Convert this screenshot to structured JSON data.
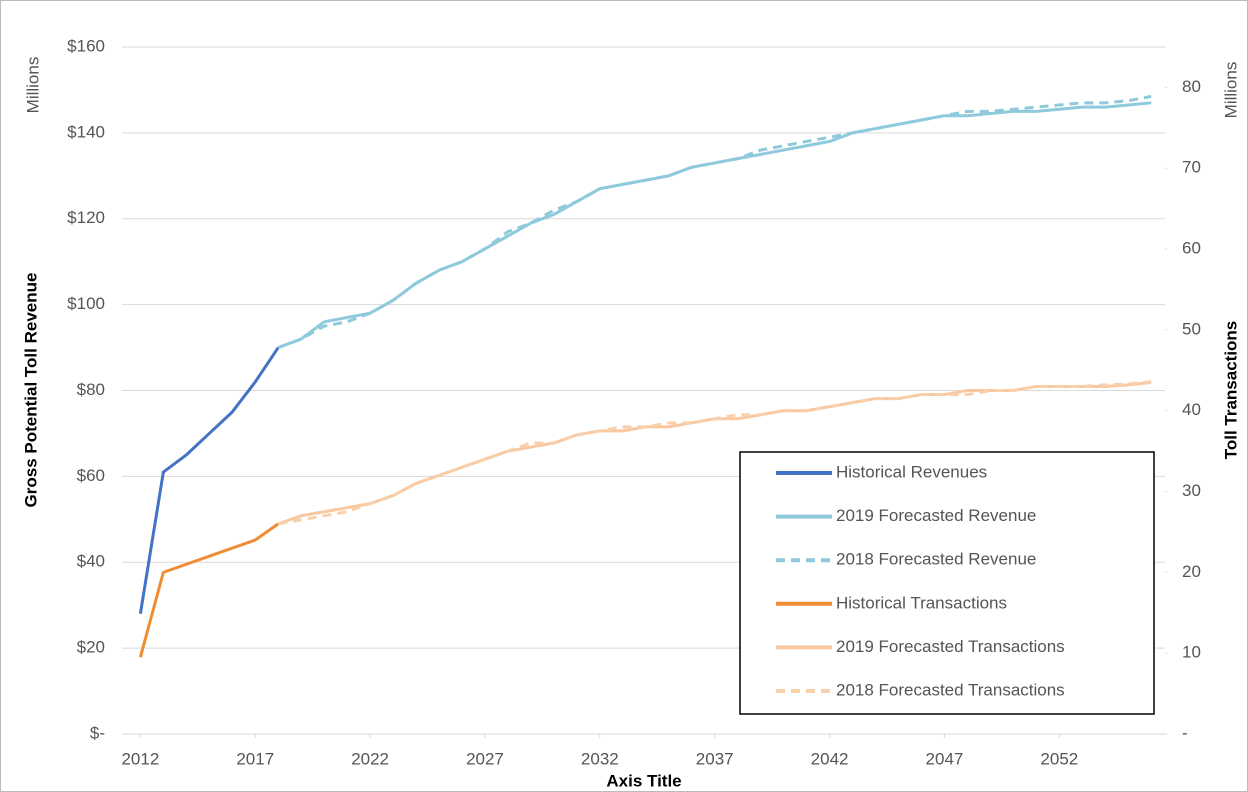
{
  "chart_data": {
    "type": "line",
    "x_label": "Axis Title",
    "y_label": "Gross Potential Toll Revenue",
    "y2_label": "Toll Transactions",
    "y_unit": "Millions",
    "y2_unit": "Millions",
    "xlim": [
      2011.2,
      2056.6
    ],
    "xticks": [
      2012,
      2017,
      2022,
      2027,
      2032,
      2037,
      2042,
      2047,
      2052
    ],
    "ylim": [
      0,
      160
    ],
    "yticks": [
      {
        "value": 0,
        "label": "$-"
      },
      {
        "value": 20,
        "label": "$20"
      },
      {
        "value": 40,
        "label": "$40"
      },
      {
        "value": 60,
        "label": "$60"
      },
      {
        "value": 80,
        "label": "$80"
      },
      {
        "value": 100,
        "label": "$100"
      },
      {
        "value": 120,
        "label": "$120"
      },
      {
        "value": 140,
        "label": "$140"
      },
      {
        "value": 160,
        "label": "$160"
      }
    ],
    "y2lim": [
      0,
      85
    ],
    "y2ticks": [
      {
        "value": 0,
        "label": "-"
      },
      10,
      20,
      30,
      40,
      50,
      60,
      70,
      80
    ],
    "grid": true,
    "legend": "lower right",
    "series": [
      {
        "name": "Historical Revenues",
        "color": "#4472c4",
        "dashed": false,
        "x": [
          2012,
          2013,
          2014,
          2015,
          2016,
          2017,
          2018
        ],
        "values": [
          28,
          61,
          65,
          70,
          75,
          82,
          90
        ]
      },
      {
        "name": "2019 Forecasted Revenue",
        "color": "#8ec9dc",
        "dashed": false,
        "x": [
          2018,
          2019,
          2020,
          2021,
          2022,
          2023,
          2024,
          2025,
          2026,
          2027,
          2028,
          2029,
          2030,
          2031,
          2032,
          2033,
          2034,
          2035,
          2036,
          2037,
          2038,
          2039,
          2040,
          2041,
          2042,
          2043,
          2044,
          2045,
          2046,
          2047,
          2048,
          2049,
          2050,
          2051,
          2052,
          2053,
          2054,
          2055,
          2056
        ],
        "values": [
          90,
          92,
          96,
          97,
          98,
          101,
          105,
          108,
          110,
          113,
          116,
          119,
          121,
          124,
          127,
          128,
          129,
          130,
          132,
          133,
          134,
          135,
          136,
          137,
          138,
          140,
          141,
          142,
          143,
          144,
          144,
          144.5,
          145,
          145,
          145.5,
          146,
          146,
          146.5,
          147
        ]
      },
      {
        "name": "2018 Forecasted Revenue",
        "color": "#8ec9dc",
        "dashed": true,
        "x": [
          2018,
          2019,
          2020,
          2021,
          2022,
          2023,
          2024,
          2025,
          2026,
          2027,
          2028,
          2029,
          2030,
          2031,
          2032,
          2033,
          2034,
          2035,
          2036,
          2037,
          2038,
          2039,
          2040,
          2041,
          2042,
          2043,
          2044,
          2045,
          2046,
          2047,
          2048,
          2049,
          2050,
          2051,
          2052,
          2053,
          2054,
          2055,
          2056
        ],
        "values": [
          90,
          92,
          95,
          96,
          98,
          101,
          105,
          108,
          110,
          113,
          117,
          119,
          122,
          124,
          127,
          128,
          129,
          130,
          132,
          133,
          134,
          136,
          137,
          138,
          139,
          140,
          141,
          142,
          143,
          144,
          145,
          145,
          145.5,
          146,
          146.5,
          147,
          147,
          147.5,
          148.5
        ]
      },
      {
        "name": "Historical Transactions",
        "color": "#f08c34",
        "dashed": false,
        "axis": "y2",
        "x": [
          2012,
          2013,
          2014,
          2015,
          2016,
          2017,
          2018
        ],
        "values": [
          9.5,
          20,
          21,
          22,
          23,
          24,
          26
        ]
      },
      {
        "name": "2019 Forecasted Transactions",
        "color": "#f9c8a0",
        "dashed": false,
        "axis": "y2",
        "x": [
          2018,
          2019,
          2020,
          2021,
          2022,
          2023,
          2024,
          2025,
          2026,
          2027,
          2028,
          2029,
          2030,
          2031,
          2032,
          2033,
          2034,
          2035,
          2036,
          2037,
          2038,
          2039,
          2040,
          2041,
          2042,
          2043,
          2044,
          2045,
          2046,
          2047,
          2048,
          2049,
          2050,
          2051,
          2052,
          2053,
          2054,
          2055,
          2056
        ],
        "values": [
          26,
          27,
          27.5,
          28,
          28.5,
          29.5,
          31,
          32,
          33,
          34,
          35,
          35.5,
          36,
          37,
          37.5,
          37.5,
          38,
          38,
          38.5,
          39,
          39,
          39.5,
          40,
          40,
          40.5,
          41,
          41.5,
          41.5,
          42,
          42,
          42.5,
          42.5,
          42.5,
          43,
          43,
          43,
          43,
          43.2,
          43.5
        ]
      },
      {
        "name": "2018 Forecasted Transactions",
        "color": "#f9d0ac",
        "dashed": true,
        "axis": "y2",
        "x": [
          2018,
          2019,
          2020,
          2021,
          2022,
          2023,
          2024,
          2025,
          2026,
          2027,
          2028,
          2029,
          2030,
          2031,
          2032,
          2033,
          2034,
          2035,
          2036,
          2037,
          2038,
          2039,
          2040,
          2041,
          2042,
          2043,
          2044,
          2045,
          2046,
          2047,
          2048,
          2049,
          2050,
          2051,
          2052,
          2053,
          2054,
          2055,
          2056
        ],
        "values": [
          26,
          26.5,
          27,
          27.5,
          28.5,
          29.5,
          31,
          32,
          33,
          34,
          35,
          36,
          36,
          37,
          37.5,
          38,
          38,
          38.5,
          38.5,
          39,
          39.5,
          39.5,
          40,
          40,
          40.5,
          41,
          41.5,
          41.5,
          42,
          42,
          42,
          42.5,
          42.5,
          43,
          43,
          43,
          43.2,
          43.3,
          43.6
        ]
      }
    ]
  }
}
